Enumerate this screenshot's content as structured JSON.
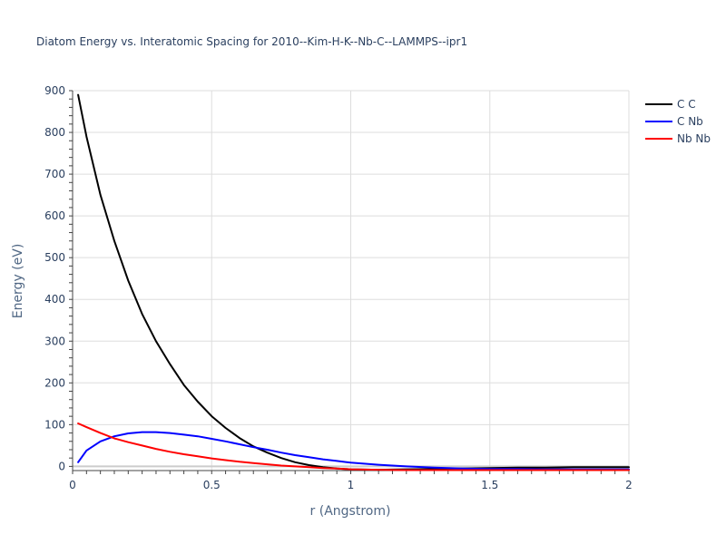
{
  "chart_data": {
    "type": "line",
    "title": "Diatom Energy vs. Interatomic Spacing for 2010--Kim-H-K--Nb-C--LAMMPS--ipr1",
    "xlabel": "r (Angstrom)",
    "ylabel": "Energy (eV)",
    "xlim": [
      0,
      2
    ],
    "ylim": [
      -10,
      900
    ],
    "x_ticks": [
      "0",
      "0.5",
      "1",
      "1.5",
      "2"
    ],
    "y_ticks": [
      "0",
      "100",
      "200",
      "300",
      "400",
      "500",
      "600",
      "700",
      "800",
      "900"
    ],
    "grid": true,
    "legend_position": "top-right",
    "series": [
      {
        "name": "C C",
        "color": "#000000",
        "x": [
          0.02,
          0.05,
          0.1,
          0.15,
          0.2,
          0.25,
          0.3,
          0.35,
          0.4,
          0.45,
          0.5,
          0.55,
          0.6,
          0.65,
          0.7,
          0.75,
          0.8,
          0.85,
          0.9,
          0.95,
          1.0,
          1.1,
          1.2,
          1.3,
          1.4,
          1.5,
          1.6,
          1.7,
          1.8,
          1.9,
          2.0
        ],
        "y": [
          890,
          790,
          650,
          540,
          445,
          365,
          300,
          245,
          195,
          155,
          120,
          92,
          68,
          48,
          33,
          20,
          10,
          3,
          -2,
          -5,
          -7,
          -8,
          -7,
          -6,
          -5,
          -4,
          -3,
          -3,
          -2,
          -2,
          -2
        ]
      },
      {
        "name": "C Nb",
        "color": "#0000ff",
        "x": [
          0.02,
          0.05,
          0.1,
          0.15,
          0.2,
          0.25,
          0.3,
          0.35,
          0.4,
          0.45,
          0.5,
          0.55,
          0.6,
          0.65,
          0.7,
          0.75,
          0.8,
          0.85,
          0.9,
          0.95,
          1.0,
          1.1,
          1.2,
          1.3,
          1.4,
          1.5,
          1.6,
          1.7,
          1.8,
          1.9,
          2.0
        ],
        "y": [
          10,
          38,
          60,
          72,
          79,
          82,
          82,
          80,
          76,
          72,
          66,
          60,
          53,
          46,
          40,
          33,
          27,
          22,
          17,
          13,
          9,
          4,
          0,
          -3,
          -5,
          -6,
          -6,
          -7,
          -7,
          -7,
          -7
        ]
      },
      {
        "name": "Nb Nb",
        "color": "#ff0000",
        "x": [
          0.02,
          0.05,
          0.1,
          0.15,
          0.2,
          0.25,
          0.3,
          0.35,
          0.4,
          0.45,
          0.5,
          0.55,
          0.6,
          0.65,
          0.7,
          0.75,
          0.8,
          0.85,
          0.9,
          0.95,
          1.0,
          1.1,
          1.2,
          1.3,
          1.4,
          1.5,
          1.6,
          1.7,
          1.8,
          1.9,
          2.0
        ],
        "y": [
          103,
          94,
          80,
          67,
          58,
          50,
          42,
          35,
          29,
          24,
          19,
          15,
          11,
          8,
          5,
          2,
          0,
          -2,
          -4,
          -5,
          -7,
          -8,
          -9,
          -9,
          -9,
          -9,
          -9,
          -9,
          -9,
          -9,
          -9
        ]
      }
    ]
  }
}
